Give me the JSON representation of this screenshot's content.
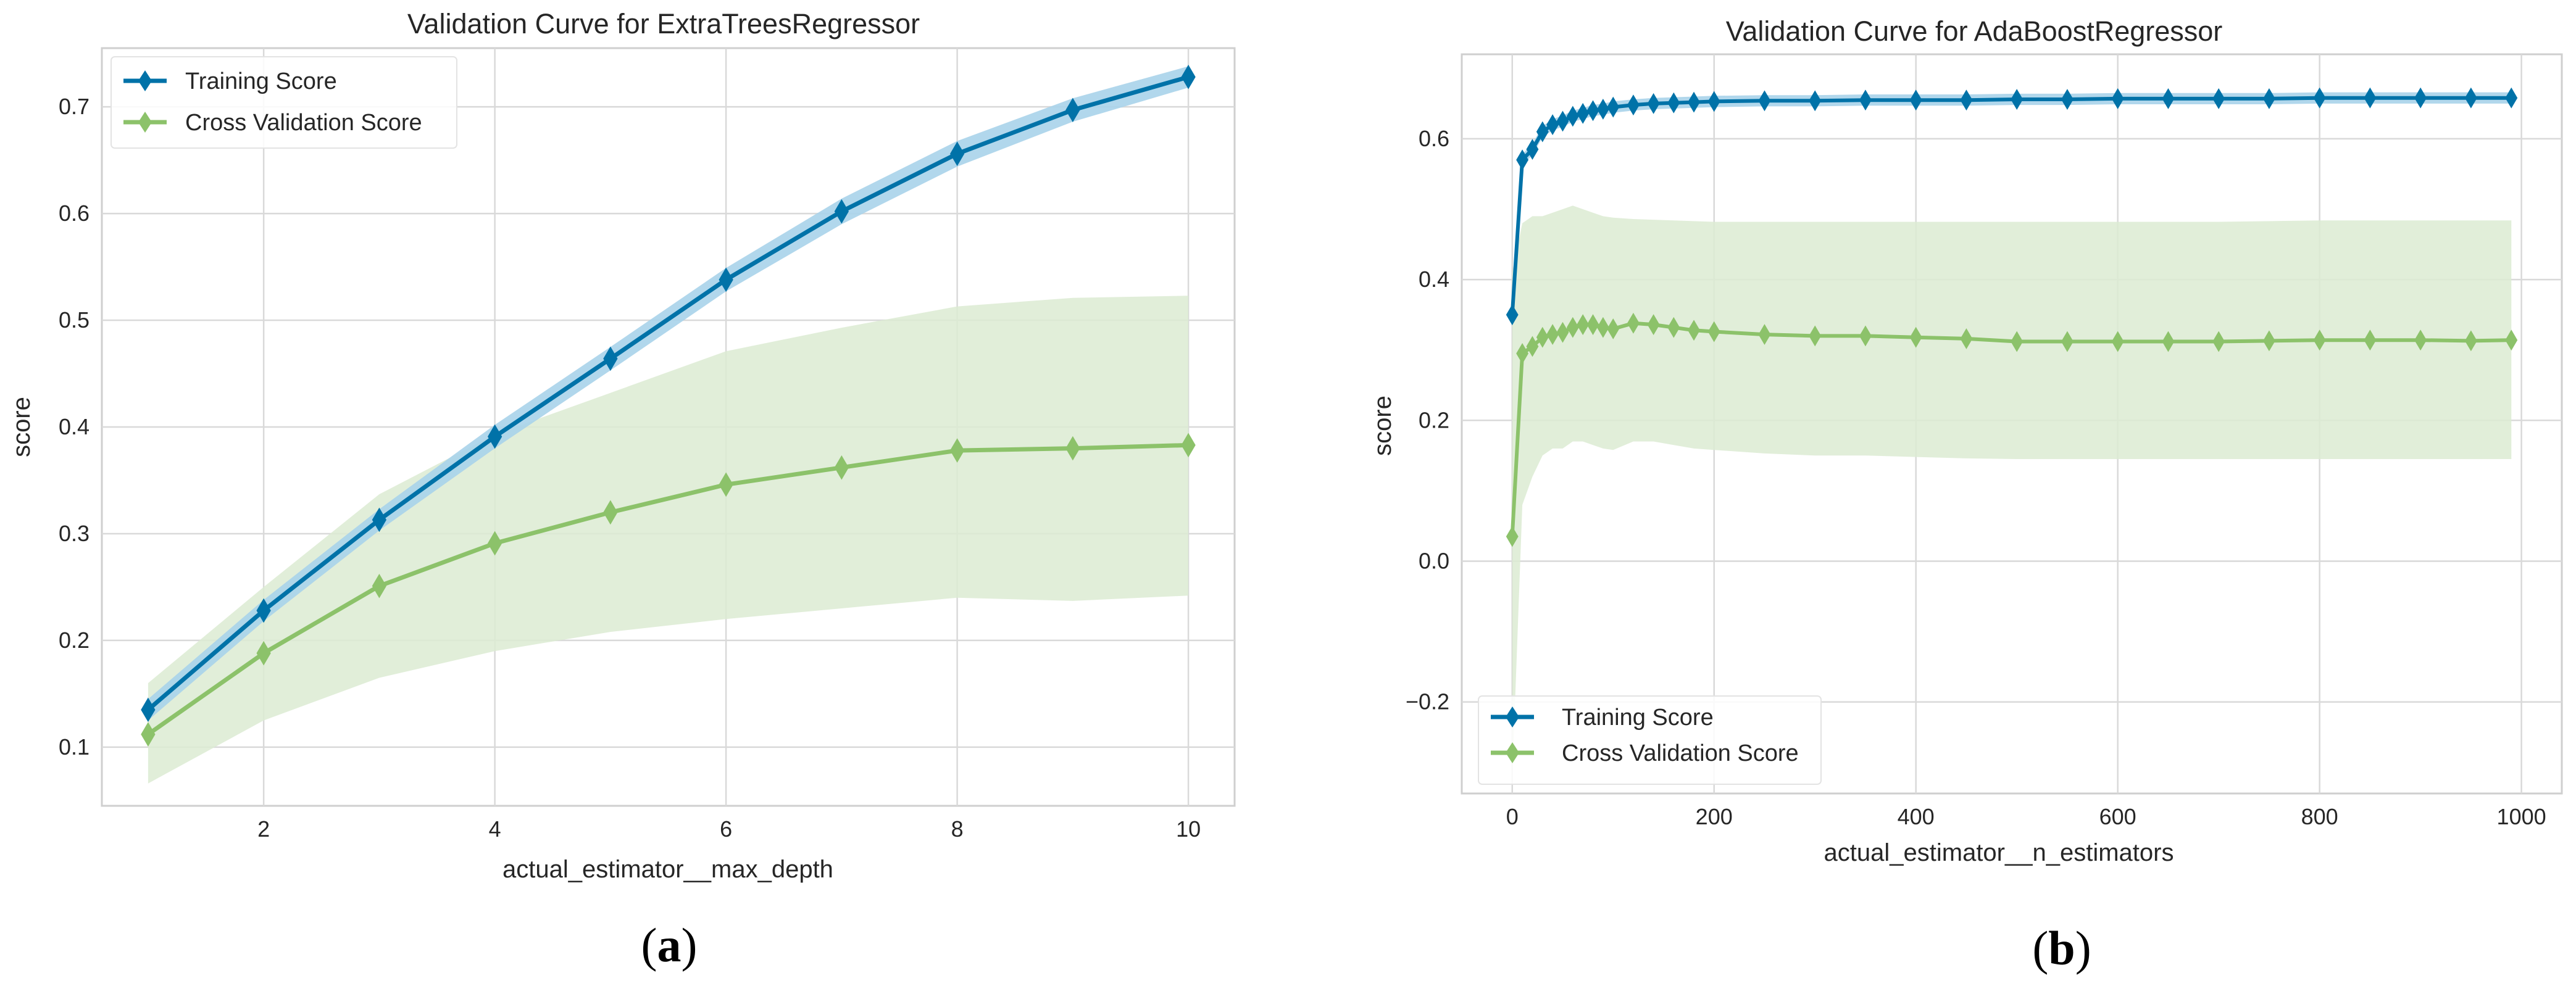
{
  "figure": {
    "caption_a": "a",
    "caption_b": "b"
  },
  "colors": {
    "training": "#0072a8",
    "training_band": "#a9d3ea",
    "cv": "#8cc26a",
    "cv_band": "#dcebd2",
    "plot_bg": "#ffffff",
    "grid": "#d9d9d9",
    "frame": "#cfcfcf"
  },
  "chart_data": [
    {
      "type": "line",
      "title": "Validation Curve for ExtraTreesRegressor",
      "xlabel": "actual_estimator__max_depth",
      "ylabel": "score",
      "xlim": [
        0.6,
        10.4
      ],
      "ylim": [
        0.045,
        0.755
      ],
      "xticks": [
        2,
        4,
        6,
        8,
        10
      ],
      "yticks": [
        0.1,
        0.2,
        0.3,
        0.4,
        0.5,
        0.6,
        0.7
      ],
      "grid": true,
      "legend_position": "top-left",
      "series": [
        {
          "name": "Training Score",
          "x": [
            1,
            2,
            3,
            4,
            5,
            6,
            7,
            8,
            9,
            10
          ],
          "values": [
            0.135,
            0.228,
            0.313,
            0.391,
            0.464,
            0.538,
            0.602,
            0.656,
            0.697,
            0.728
          ],
          "lower": [
            0.125,
            0.218,
            0.303,
            0.38,
            0.453,
            0.527,
            0.59,
            0.644,
            0.686,
            0.718
          ],
          "upper": [
            0.145,
            0.238,
            0.323,
            0.402,
            0.475,
            0.549,
            0.614,
            0.668,
            0.708,
            0.738
          ]
        },
        {
          "name": "Cross Validation Score",
          "x": [
            1,
            2,
            3,
            4,
            5,
            6,
            7,
            8,
            9,
            10
          ],
          "values": [
            0.112,
            0.188,
            0.251,
            0.291,
            0.32,
            0.346,
            0.362,
            0.378,
            0.38,
            0.383
          ],
          "lower": [
            0.066,
            0.125,
            0.165,
            0.19,
            0.208,
            0.22,
            0.23,
            0.24,
            0.237,
            0.242
          ],
          "upper": [
            0.16,
            0.25,
            0.337,
            0.393,
            0.432,
            0.471,
            0.493,
            0.513,
            0.521,
            0.523
          ]
        }
      ]
    },
    {
      "type": "line",
      "title": "Validation Curve for AdaBoostRegressor",
      "xlabel": "actual_estimator__n_estimators",
      "ylabel": "score",
      "xlim": [
        -50,
        1040
      ],
      "ylim": [
        -0.33,
        0.72
      ],
      "xticks": [
        0,
        200,
        400,
        600,
        800,
        1000
      ],
      "yticks": [
        -0.2,
        0.0,
        0.2,
        0.4,
        0.6
      ],
      "ytick_labels": [
        "−0.2",
        "0.0",
        "0.2",
        "0.4",
        "0.6"
      ],
      "grid": true,
      "legend_position": "bottom-left",
      "series": [
        {
          "name": "Training Score",
          "x": [
            0,
            10,
            20,
            30,
            40,
            50,
            60,
            70,
            80,
            90,
            100,
            120,
            140,
            160,
            180,
            200,
            250,
            300,
            350,
            400,
            450,
            500,
            550,
            600,
            650,
            700,
            750,
            800,
            850,
            900,
            950,
            990
          ],
          "values": [
            0.35,
            0.57,
            0.585,
            0.61,
            0.62,
            0.625,
            0.632,
            0.636,
            0.64,
            0.642,
            0.645,
            0.648,
            0.65,
            0.651,
            0.652,
            0.653,
            0.654,
            0.654,
            0.655,
            0.655,
            0.655,
            0.656,
            0.656,
            0.657,
            0.657,
            0.657,
            0.657,
            0.658,
            0.658,
            0.658,
            0.658,
            0.658
          ],
          "band_halfwidth": 0.008
        },
        {
          "name": "Cross Validation Score",
          "x": [
            0,
            10,
            20,
            30,
            40,
            50,
            60,
            70,
            80,
            90,
            100,
            120,
            140,
            160,
            180,
            200,
            250,
            300,
            350,
            400,
            450,
            500,
            550,
            600,
            650,
            700,
            750,
            800,
            850,
            900,
            950,
            990
          ],
          "values": [
            0.035,
            0.295,
            0.305,
            0.318,
            0.322,
            0.325,
            0.332,
            0.336,
            0.336,
            0.332,
            0.33,
            0.338,
            0.336,
            0.332,
            0.328,
            0.326,
            0.322,
            0.32,
            0.32,
            0.318,
            0.316,
            0.312,
            0.312,
            0.312,
            0.312,
            0.312,
            0.313,
            0.314,
            0.314,
            0.314,
            0.313,
            0.314
          ],
          "lower": [
            -0.31,
            0.08,
            0.12,
            0.15,
            0.16,
            0.16,
            0.17,
            0.17,
            0.165,
            0.16,
            0.158,
            0.17,
            0.17,
            0.165,
            0.16,
            0.158,
            0.153,
            0.15,
            0.15,
            0.148,
            0.146,
            0.145,
            0.145,
            0.145,
            0.145,
            0.145,
            0.145,
            0.145,
            0.145,
            0.145,
            0.145,
            0.145
          ],
          "upper": [
            0.41,
            0.48,
            0.49,
            0.49,
            0.495,
            0.5,
            0.505,
            0.5,
            0.495,
            0.49,
            0.488,
            0.486,
            0.485,
            0.484,
            0.483,
            0.482,
            0.482,
            0.482,
            0.482,
            0.482,
            0.482,
            0.482,
            0.482,
            0.482,
            0.482,
            0.482,
            0.483,
            0.484,
            0.484,
            0.484,
            0.484,
            0.484
          ]
        }
      ]
    }
  ]
}
